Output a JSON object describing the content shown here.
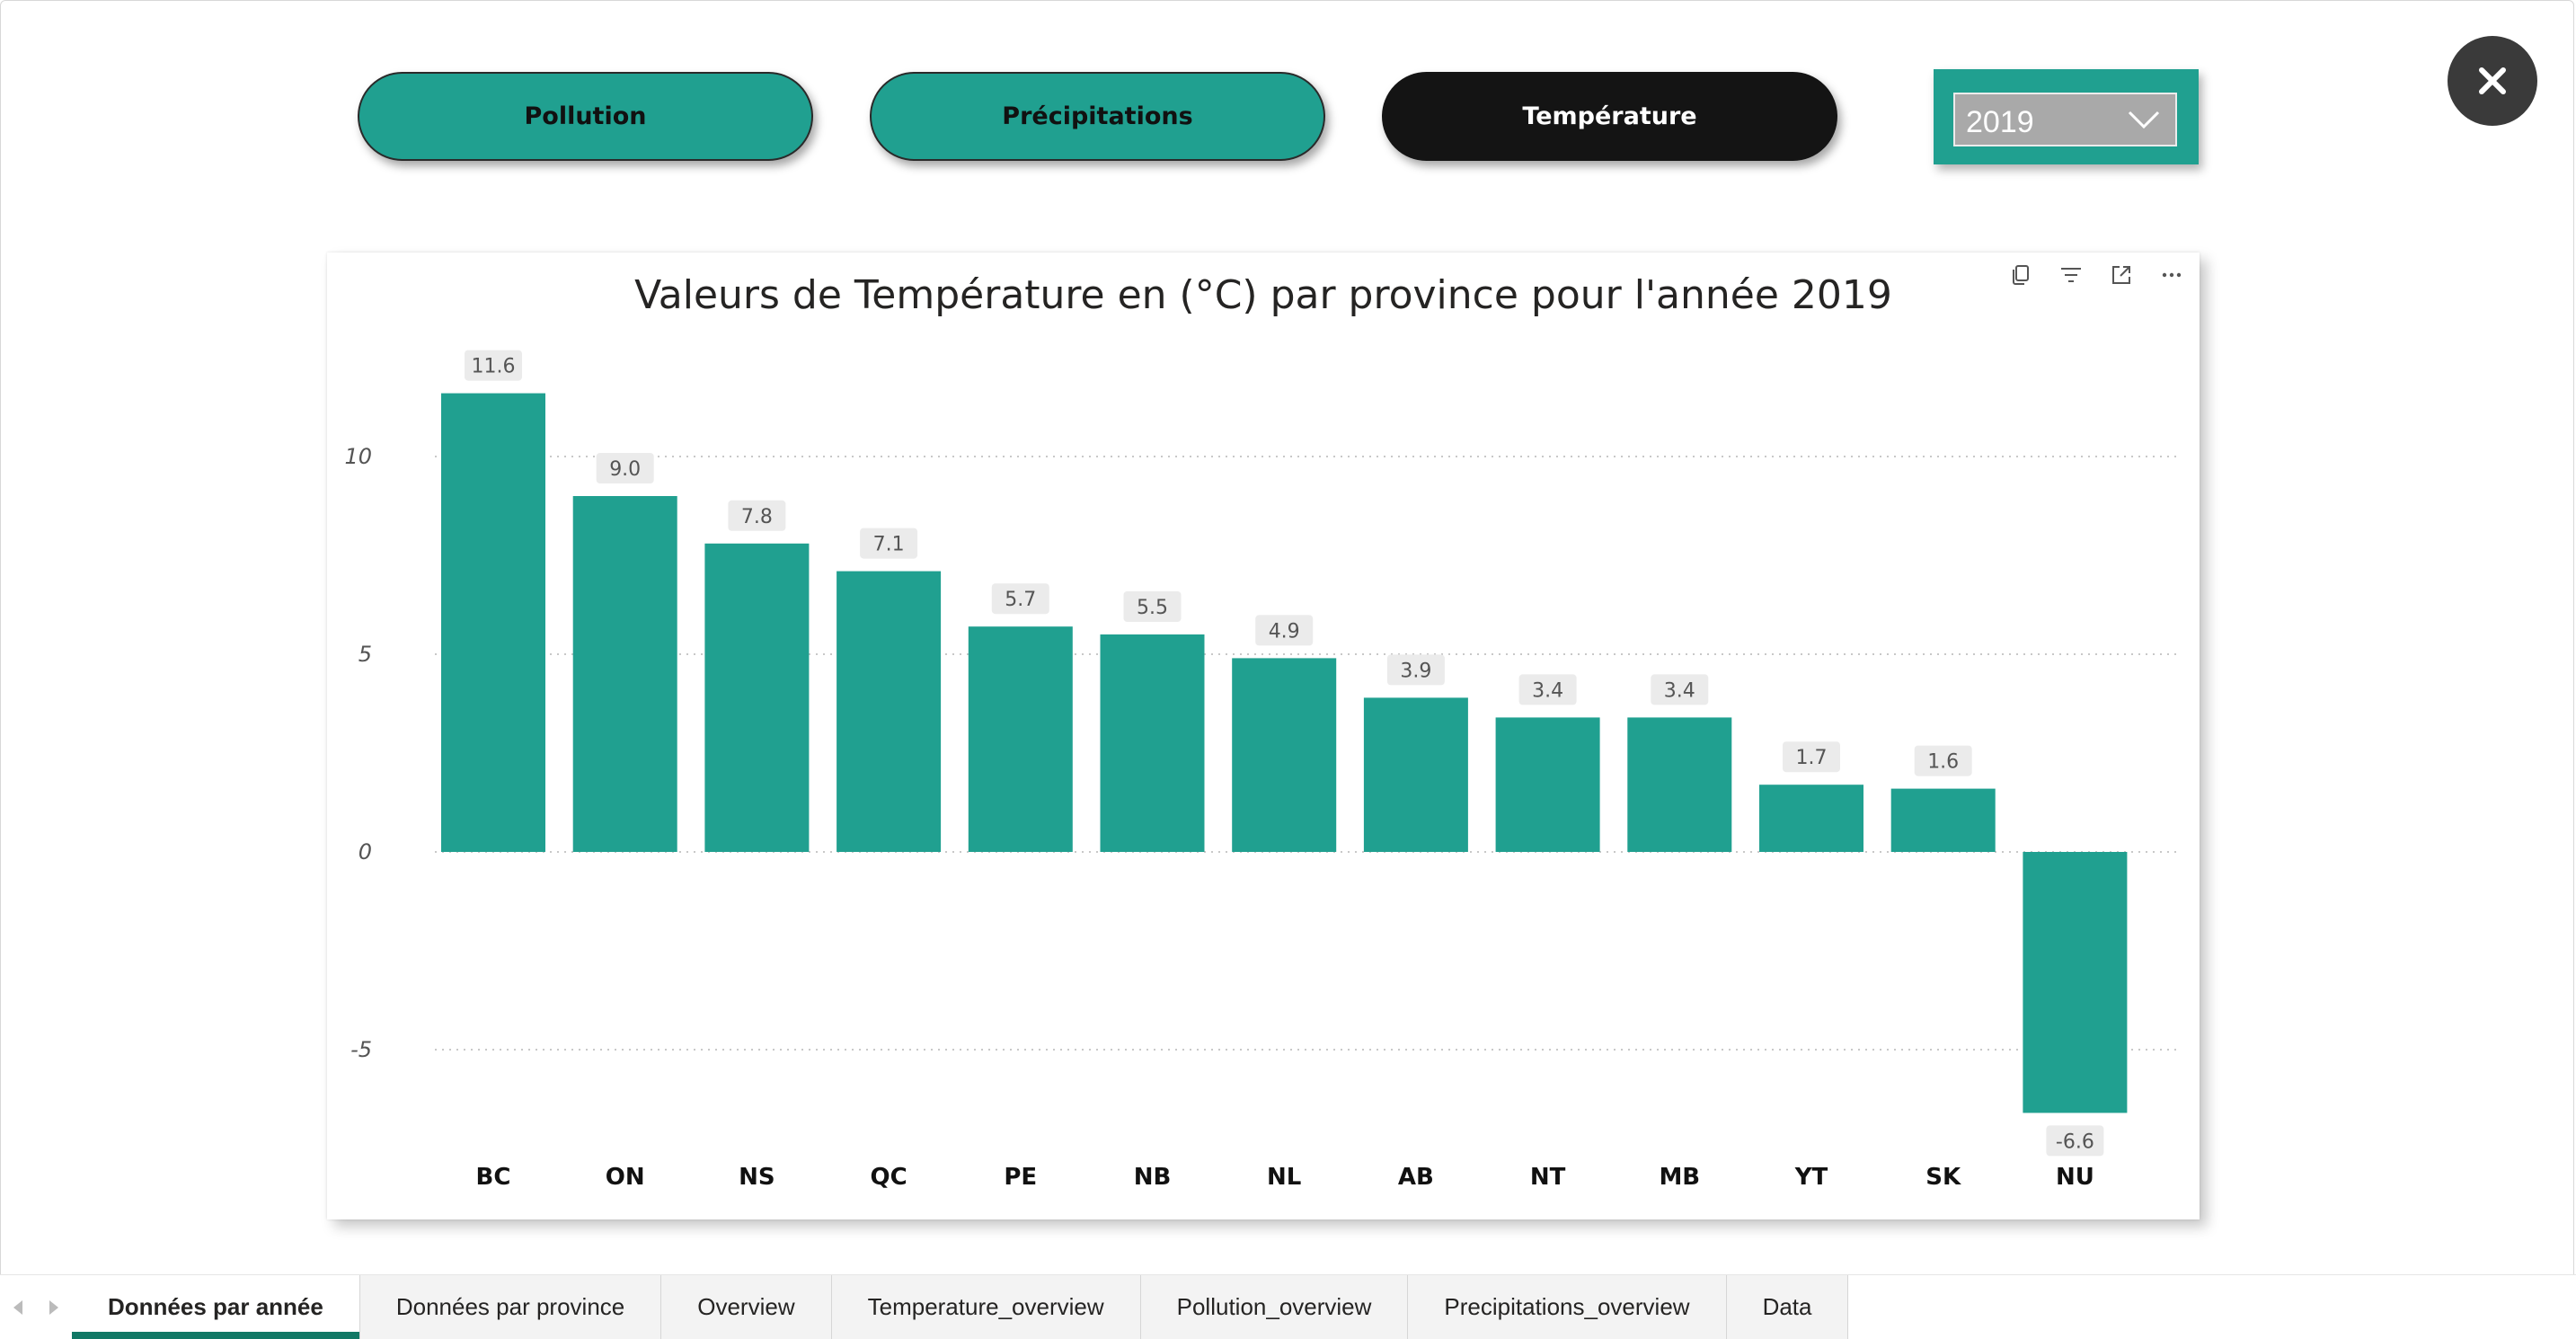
{
  "nav_buttons": {
    "pollution": "Pollution",
    "precipitations": "Précipitations",
    "temperature": "Température"
  },
  "year_slicer": {
    "selected": "2019"
  },
  "colors": {
    "accent": "#20a090",
    "active_button": "#141414",
    "tab_indicator": "#117865"
  },
  "icons": {
    "close": "close-icon",
    "card": [
      "copy-icon",
      "filter-icon",
      "focus-mode-icon",
      "more-options-icon"
    ],
    "dropdown": "chevron-down-icon"
  },
  "chart_data": {
    "type": "bar",
    "title": "Valeurs de Température en (°C) par province pour l'année 2019",
    "categories": [
      "BC",
      "ON",
      "NS",
      "QC",
      "PE",
      "NB",
      "NL",
      "AB",
      "NT",
      "MB",
      "YT",
      "SK",
      "NU"
    ],
    "values": [
      11.6,
      9.0,
      7.8,
      7.1,
      5.7,
      5.5,
      4.9,
      3.9,
      3.4,
      3.4,
      1.7,
      1.6,
      -6.6
    ],
    "data_labels": [
      "11.6",
      "9.0",
      "7.8",
      "7.1",
      "5.7",
      "5.5",
      "4.9",
      "3.9",
      "3.4",
      "3.4",
      "1.7",
      "1.6",
      "-6.6"
    ],
    "yticks": [
      -5,
      0,
      5,
      10
    ],
    "ylim": [
      -7,
      12.4
    ],
    "gridlines": true,
    "color": "#20a090"
  },
  "tabs": [
    {
      "label": "Données par année",
      "active": true
    },
    {
      "label": "Données par province",
      "active": false
    },
    {
      "label": "Overview",
      "active": false
    },
    {
      "label": "Temperature_overview",
      "active": false
    },
    {
      "label": "Pollution_overview",
      "active": false
    },
    {
      "label": "Precipitations_overview",
      "active": false
    },
    {
      "label": "Data",
      "active": false
    }
  ]
}
